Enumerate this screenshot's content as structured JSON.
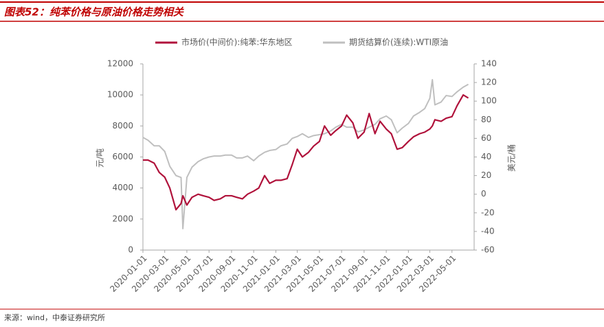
{
  "chart_data": {
    "type": "line",
    "title": "图表52：纯苯价格与原油价格走势相关",
    "source": "来源：wind，中泰证券研究所",
    "ylabel": "元/吨",
    "y2label": "美元/桶",
    "x": [
      "2020-01-01",
      "2020-01-15",
      "2020-02-01",
      "2020-02-15",
      "2020-03-01",
      "2020-03-15",
      "2020-04-01",
      "2020-04-15",
      "2020-04-20",
      "2020-05-01",
      "2020-05-15",
      "2020-06-01",
      "2020-06-15",
      "2020-07-01",
      "2020-07-15",
      "2020-08-01",
      "2020-08-15",
      "2020-09-01",
      "2020-09-15",
      "2020-10-01",
      "2020-10-15",
      "2020-11-01",
      "2020-11-15",
      "2020-12-01",
      "2020-12-15",
      "2021-01-01",
      "2021-01-15",
      "2021-02-01",
      "2021-02-15",
      "2021-03-01",
      "2021-03-15",
      "2021-04-01",
      "2021-04-15",
      "2021-05-01",
      "2021-05-15",
      "2021-06-01",
      "2021-06-15",
      "2021-07-01",
      "2021-07-15",
      "2021-08-01",
      "2021-08-15",
      "2021-09-01",
      "2021-09-15",
      "2021-10-01",
      "2021-10-15",
      "2021-11-01",
      "2021-11-15",
      "2021-12-01",
      "2021-12-15",
      "2022-01-01",
      "2022-01-15",
      "2022-02-01",
      "2022-02-15",
      "2022-03-01",
      "2022-03-08",
      "2022-03-15",
      "2022-04-01",
      "2022-04-15",
      "2022-05-01",
      "2022-05-15",
      "2022-06-01",
      "2022-06-15"
    ],
    "series": [
      {
        "name": "市场价(中间价):纯苯:华东地区",
        "color": "#b0123b",
        "axis": "y",
        "values": [
          5800,
          5800,
          5600,
          5000,
          4700,
          4000,
          2600,
          3000,
          3500,
          2900,
          3400,
          3600,
          3500,
          3400,
          3200,
          3300,
          3500,
          3500,
          3400,
          3300,
          3600,
          3800,
          4000,
          4800,
          4300,
          4500,
          4500,
          4600,
          5500,
          6500,
          6000,
          6300,
          6700,
          7000,
          8000,
          7400,
          7700,
          8000,
          8700,
          8200,
          7200,
          7600,
          8800,
          7500,
          8300,
          7800,
          7500,
          6500,
          6600,
          7000,
          7300,
          7500,
          7600,
          7800,
          8000,
          8400,
          8300,
          8500,
          8600,
          9300,
          10000,
          9800
        ]
      },
      {
        "name": "期货结算价(连续):WTI原油",
        "color": "#bfbfbf",
        "axis": "y2",
        "values": [
          61,
          58,
          52,
          52,
          46,
          30,
          20,
          18,
          -37,
          18,
          29,
          35,
          38,
          40,
          41,
          41,
          42,
          42,
          39,
          39,
          41,
          36,
          41,
          45,
          47,
          48,
          52,
          54,
          60,
          62,
          65,
          61,
          63,
          64,
          65,
          68,
          72,
          75,
          72,
          72,
          67,
          69,
          72,
          75,
          81,
          84,
          80,
          66,
          71,
          76,
          84,
          88,
          92,
          103,
          123,
          96,
          99,
          106,
          105,
          110,
          115,
          118
        ]
      }
    ],
    "xlim": [
      "2020-01-01",
      "2022-07-01"
    ],
    "xticks": [
      "2020-01-01",
      "2020-03-01",
      "2020-05-01",
      "2020-07-01",
      "2020-09-01",
      "2020-11-01",
      "2021-01-01",
      "2021-03-01",
      "2021-05-01",
      "2021-07-01",
      "2021-09-01",
      "2021-11-01",
      "2022-01-01",
      "2022-03-01",
      "2022-05-01"
    ],
    "ylim": [
      0,
      12000
    ],
    "yticks": [
      0,
      2000,
      4000,
      6000,
      8000,
      10000,
      12000
    ],
    "y2lim": [
      -60,
      140
    ],
    "y2ticks": [
      -60,
      -40,
      -20,
      0,
      20,
      40,
      60,
      80,
      100,
      120,
      140
    ],
    "legend": "top"
  }
}
